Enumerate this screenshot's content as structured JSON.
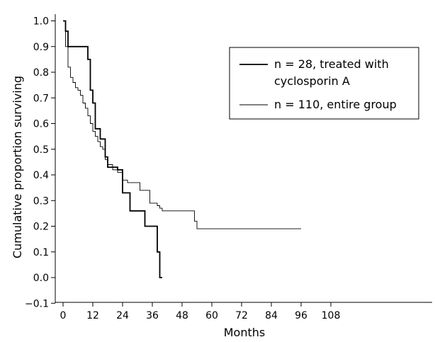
{
  "chart_data": {
    "type": "line",
    "step": true,
    "xlabel": "Months",
    "ylabel": "Cumulative proportion surviving",
    "xlim": [
      -2,
      110
    ],
    "ylim": [
      -0.1,
      1.05
    ],
    "xticks": [
      0,
      12,
      24,
      36,
      48,
      60,
      72,
      84,
      96,
      108
    ],
    "yticks": [
      -0.1,
      0.0,
      0.1,
      0.2,
      0.3,
      0.4,
      0.5,
      0.6,
      0.7,
      0.8,
      0.9,
      1.0
    ],
    "ytick_labels": [
      "−0.1",
      "0.0",
      "0.1",
      "0.2",
      "0.3",
      "0.4",
      "0.5",
      "0.6",
      "0.7",
      "0.8",
      "0.9",
      "1.0"
    ],
    "legend_position": "top-right",
    "series": [
      {
        "name": "n = 28, treated with cyclosporin A",
        "name_lines": [
          "n = 28, treated with",
          "cyclosporin A"
        ],
        "stroke_width": 1.8,
        "color": "#000000",
        "x": [
          0,
          1,
          2,
          9,
          10,
          11,
          12,
          13,
          15,
          17,
          18,
          22,
          24,
          27,
          33,
          38,
          39,
          40
        ],
        "y": [
          1.0,
          0.96,
          0.9,
          0.9,
          0.85,
          0.73,
          0.68,
          0.58,
          0.54,
          0.47,
          0.43,
          0.42,
          0.33,
          0.26,
          0.2,
          0.1,
          0.0,
          0.0
        ]
      },
      {
        "name": "n = 110, entire group",
        "name_lines": [
          "n = 110, entire group"
        ],
        "stroke_width": 0.9,
        "color": "#000000",
        "x": [
          0,
          1,
          2,
          3,
          4,
          5,
          6,
          7,
          8,
          9,
          10,
          11,
          12,
          13,
          14,
          15,
          16,
          17,
          18,
          20,
          22,
          24,
          26,
          28,
          31,
          35,
          37,
          38,
          39,
          40,
          53,
          54,
          55,
          60,
          72,
          84,
          96
        ],
        "y": [
          1.0,
          0.9,
          0.82,
          0.78,
          0.76,
          0.74,
          0.73,
          0.71,
          0.68,
          0.66,
          0.63,
          0.6,
          0.57,
          0.55,
          0.53,
          0.51,
          0.5,
          0.46,
          0.44,
          0.42,
          0.41,
          0.38,
          0.37,
          0.37,
          0.34,
          0.29,
          0.29,
          0.28,
          0.27,
          0.26,
          0.22,
          0.19,
          0.19,
          0.19,
          0.19,
          0.19,
          0.19
        ]
      }
    ]
  }
}
